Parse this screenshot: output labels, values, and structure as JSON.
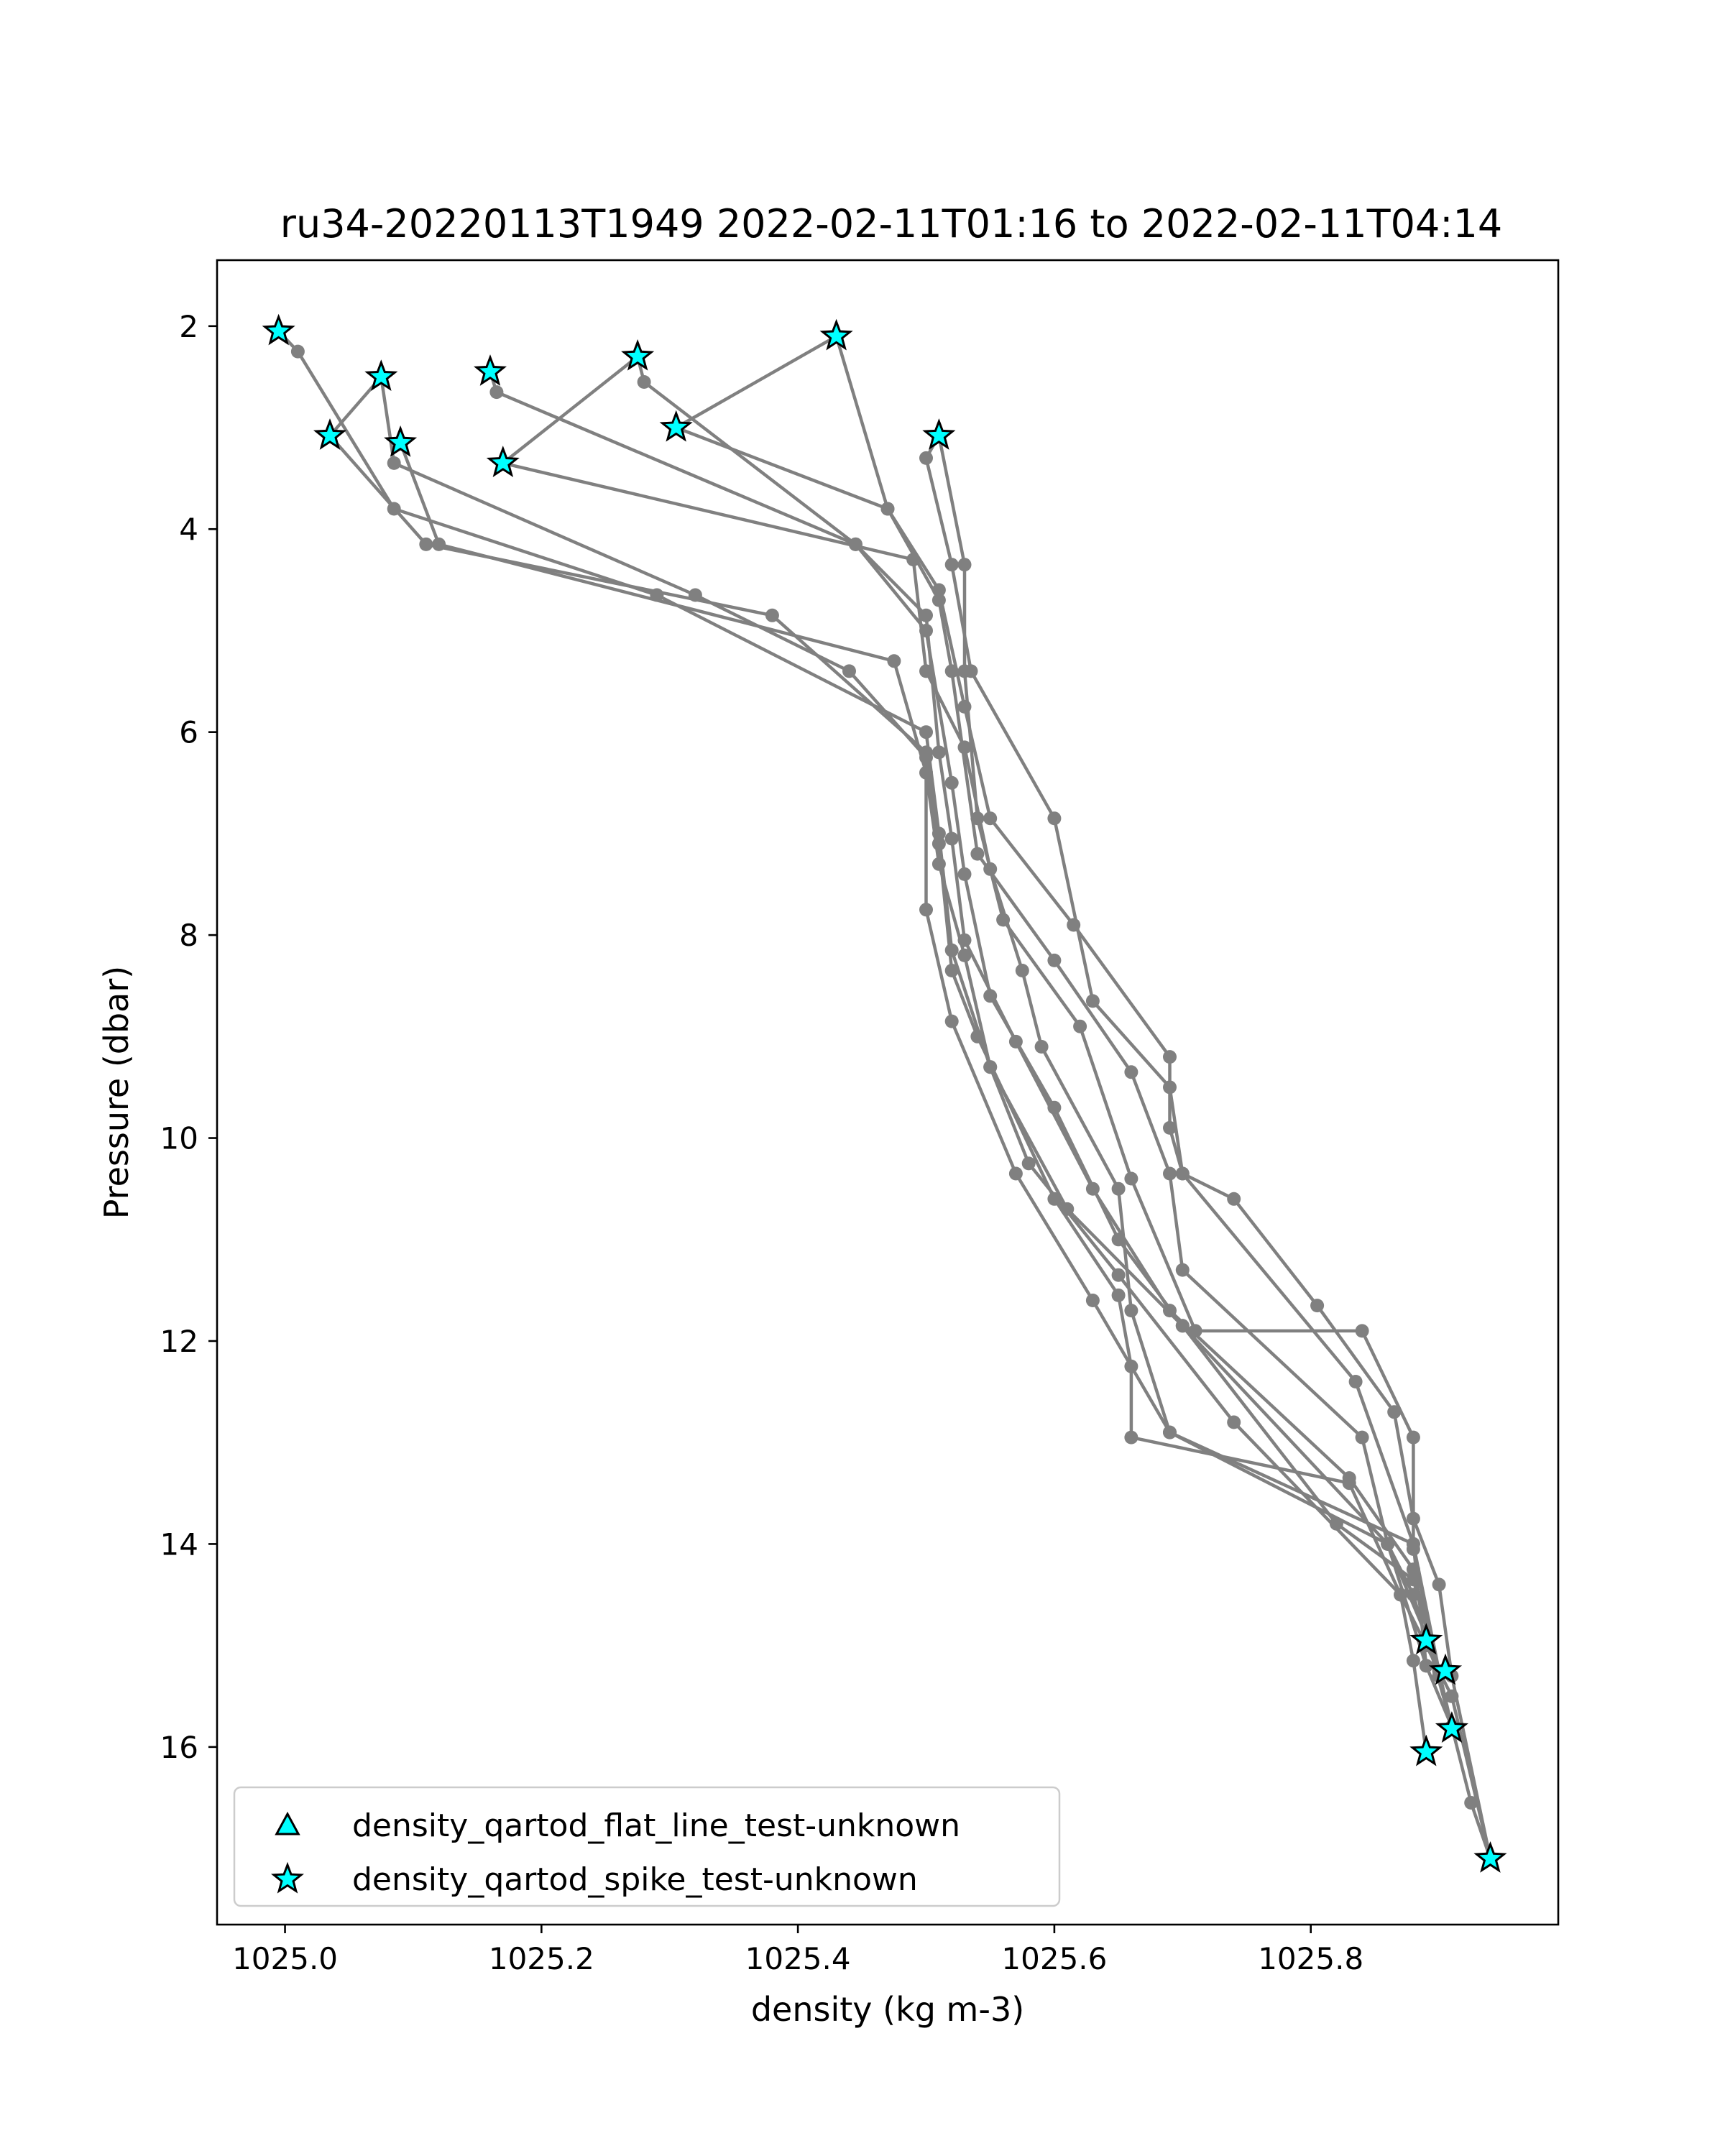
{
  "chart_data": {
    "type": "scatter",
    "title": "ru34-20220113T1949 2022-02-11T01:16 to 2022-02-11T04:14",
    "xlabel": "density (kg m-3)",
    "ylabel": "Pressure (dbar)",
    "xlim": [
      1024.947,
      1025.993
    ],
    "ylim": [
      17.75,
      1.35
    ],
    "y_inverted": true,
    "x_ticks": [
      1025.0,
      1025.2,
      1025.4,
      1025.6,
      1025.8
    ],
    "x_tick_labels": [
      "1025.0",
      "1025.2",
      "1025.4",
      "1025.6",
      "1025.8"
    ],
    "y_ticks": [
      2,
      4,
      6,
      8,
      10,
      12,
      14,
      16
    ],
    "y_tick_labels": [
      "2",
      "4",
      "6",
      "8",
      "10",
      "12",
      "14",
      "16"
    ],
    "grid": false,
    "legend_position": "lower-left",
    "line_color": "#808080",
    "marker_color": "#00ffff",
    "profiles": [
      {
        "points": [
          [
            1024.995,
            2.05
          ],
          [
            1025.01,
            2.25
          ],
          [
            1025.085,
            3.8
          ],
          [
            1025.29,
            4.65
          ],
          [
            1025.5,
            6.0
          ],
          [
            1025.51,
            7.0
          ],
          [
            1025.52,
            8.15
          ],
          [
            1025.55,
            9.3
          ],
          [
            1025.58,
            10.25
          ],
          [
            1025.65,
            11.35
          ],
          [
            1025.74,
            12.8
          ],
          [
            1025.87,
            14.5
          ],
          [
            1025.89,
            15.0
          ],
          [
            1025.91,
            15.5
          ],
          [
            1025.94,
            17.1
          ]
        ]
      },
      {
        "points": [
          [
            1025.035,
            3.08
          ],
          [
            1025.075,
            2.5
          ],
          [
            1025.085,
            3.35
          ],
          [
            1025.32,
            4.65
          ],
          [
            1025.44,
            5.4
          ],
          [
            1025.5,
            6.25
          ],
          [
            1025.5,
            7.75
          ],
          [
            1025.52,
            8.85
          ],
          [
            1025.57,
            10.35
          ],
          [
            1025.63,
            11.6
          ],
          [
            1025.69,
            12.9
          ],
          [
            1025.88,
            14.0
          ],
          [
            1025.9,
            15.25
          ],
          [
            1025.91,
            15.8
          ]
        ]
      },
      {
        "points": [
          [
            1025.035,
            3.08
          ],
          [
            1025.11,
            4.15
          ],
          [
            1025.38,
            4.85
          ],
          [
            1025.5,
            6.2
          ],
          [
            1025.51,
            7.1
          ],
          [
            1025.52,
            8.35
          ],
          [
            1025.54,
            9.0
          ],
          [
            1025.6,
            10.6
          ],
          [
            1025.65,
            11.55
          ],
          [
            1025.66,
            12.25
          ],
          [
            1025.66,
            12.95
          ],
          [
            1025.83,
            13.4
          ],
          [
            1025.87,
            14.5
          ],
          [
            1025.88,
            15.15
          ],
          [
            1025.89,
            16.05
          ]
        ]
      },
      {
        "points": [
          [
            1025.09,
            3.15
          ],
          [
            1025.12,
            4.15
          ],
          [
            1025.475,
            5.3
          ],
          [
            1025.5,
            6.4
          ],
          [
            1025.51,
            7.3
          ],
          [
            1025.53,
            8.2
          ],
          [
            1025.55,
            9.3
          ],
          [
            1025.61,
            10.7
          ],
          [
            1025.7,
            11.85
          ],
          [
            1025.86,
            14.0
          ],
          [
            1025.88,
            14.5
          ],
          [
            1025.89,
            14.95
          ]
        ]
      },
      {
        "points": [
          [
            1025.16,
            2.45
          ],
          [
            1025.165,
            2.65
          ],
          [
            1025.445,
            4.15
          ],
          [
            1025.5,
            4.85
          ],
          [
            1025.51,
            6.2
          ],
          [
            1025.52,
            7.05
          ],
          [
            1025.53,
            8.05
          ],
          [
            1025.57,
            9.05
          ],
          [
            1025.63,
            10.5
          ],
          [
            1025.69,
            11.7
          ],
          [
            1025.83,
            13.35
          ],
          [
            1025.88,
            14.25
          ],
          [
            1025.9,
            15.3
          ]
        ]
      },
      {
        "points": [
          [
            1025.17,
            3.35
          ],
          [
            1025.275,
            2.3
          ],
          [
            1025.28,
            2.55
          ],
          [
            1025.445,
            4.15
          ],
          [
            1025.5,
            5.0
          ],
          [
            1025.52,
            6.5
          ],
          [
            1025.53,
            7.4
          ],
          [
            1025.55,
            8.6
          ],
          [
            1025.6,
            9.7
          ],
          [
            1025.65,
            11.0
          ],
          [
            1025.7,
            11.85
          ],
          [
            1025.82,
            13.8
          ],
          [
            1025.88,
            14.35
          ],
          [
            1025.9,
            15.3
          ]
        ]
      },
      {
        "points": [
          [
            1025.17,
            3.35
          ],
          [
            1025.49,
            4.3
          ],
          [
            1025.5,
            5.4
          ],
          [
            1025.53,
            6.15
          ],
          [
            1025.55,
            7.35
          ],
          [
            1025.575,
            8.35
          ],
          [
            1025.59,
            9.1
          ],
          [
            1025.65,
            10.5
          ],
          [
            1025.66,
            11.7
          ],
          [
            1025.69,
            12.9
          ],
          [
            1025.86,
            14.0
          ],
          [
            1025.89,
            14.9
          ],
          [
            1025.91,
            15.8
          ]
        ]
      },
      {
        "points": [
          [
            1025.305,
            3.0
          ],
          [
            1025.43,
            2.1
          ],
          [
            1025.47,
            3.8
          ],
          [
            1025.51,
            4.7
          ],
          [
            1025.52,
            5.4
          ],
          [
            1025.54,
            7.2
          ],
          [
            1025.6,
            8.25
          ],
          [
            1025.66,
            9.35
          ],
          [
            1025.69,
            10.35
          ],
          [
            1025.7,
            11.3
          ],
          [
            1025.84,
            12.95
          ],
          [
            1025.86,
            14.0
          ],
          [
            1025.89,
            15.2
          ],
          [
            1025.91,
            15.8
          ]
        ]
      },
      {
        "points": [
          [
            1025.305,
            3.0
          ],
          [
            1025.47,
            3.8
          ],
          [
            1025.51,
            4.6
          ],
          [
            1025.53,
            5.75
          ],
          [
            1025.55,
            6.85
          ],
          [
            1025.615,
            7.9
          ],
          [
            1025.69,
            9.2
          ],
          [
            1025.69,
            9.9
          ],
          [
            1025.7,
            10.35
          ],
          [
            1025.835,
            12.4
          ],
          [
            1025.88,
            14.0
          ],
          [
            1025.89,
            15.2
          ]
        ]
      },
      {
        "points": [
          [
            1025.51,
            3.08
          ],
          [
            1025.5,
            3.3
          ],
          [
            1025.52,
            4.35
          ],
          [
            1025.535,
            5.4
          ],
          [
            1025.6,
            6.85
          ],
          [
            1025.63,
            8.65
          ],
          [
            1025.69,
            9.5
          ],
          [
            1025.7,
            10.35
          ],
          [
            1025.74,
            10.6
          ],
          [
            1025.805,
            11.65
          ],
          [
            1025.865,
            12.7
          ],
          [
            1025.88,
            13.75
          ],
          [
            1025.9,
            14.4
          ],
          [
            1025.91,
            15.3
          ],
          [
            1025.94,
            17.1
          ]
        ]
      },
      {
        "points": [
          [
            1025.51,
            3.08
          ],
          [
            1025.53,
            4.35
          ],
          [
            1025.53,
            5.4
          ],
          [
            1025.54,
            6.85
          ],
          [
            1025.56,
            7.85
          ],
          [
            1025.62,
            8.9
          ],
          [
            1025.66,
            10.4
          ],
          [
            1025.71,
            11.9
          ],
          [
            1025.84,
            11.9
          ],
          [
            1025.88,
            12.95
          ],
          [
            1025.88,
            14.05
          ],
          [
            1025.9,
            15.3
          ],
          [
            1025.925,
            16.55
          ],
          [
            1025.94,
            17.1
          ]
        ]
      }
    ],
    "flat_line_flags": [],
    "spike_flags": [
      [
        1024.995,
        2.05
      ],
      [
        1025.035,
        3.08
      ],
      [
        1025.075,
        2.5
      ],
      [
        1025.09,
        3.15
      ],
      [
        1025.16,
        2.45
      ],
      [
        1025.17,
        3.35
      ],
      [
        1025.275,
        2.3
      ],
      [
        1025.305,
        3.0
      ],
      [
        1025.43,
        2.1
      ],
      [
        1025.51,
        3.08
      ],
      [
        1025.89,
        14.95
      ],
      [
        1025.905,
        15.25
      ],
      [
        1025.91,
        15.82
      ],
      [
        1025.89,
        16.05
      ],
      [
        1025.94,
        17.1
      ]
    ],
    "legend": [
      {
        "label": "density_qartod_flat_line_test-unknown",
        "marker": "triangle"
      },
      {
        "label": "density_qartod_spike_test-unknown",
        "marker": "star"
      }
    ]
  }
}
